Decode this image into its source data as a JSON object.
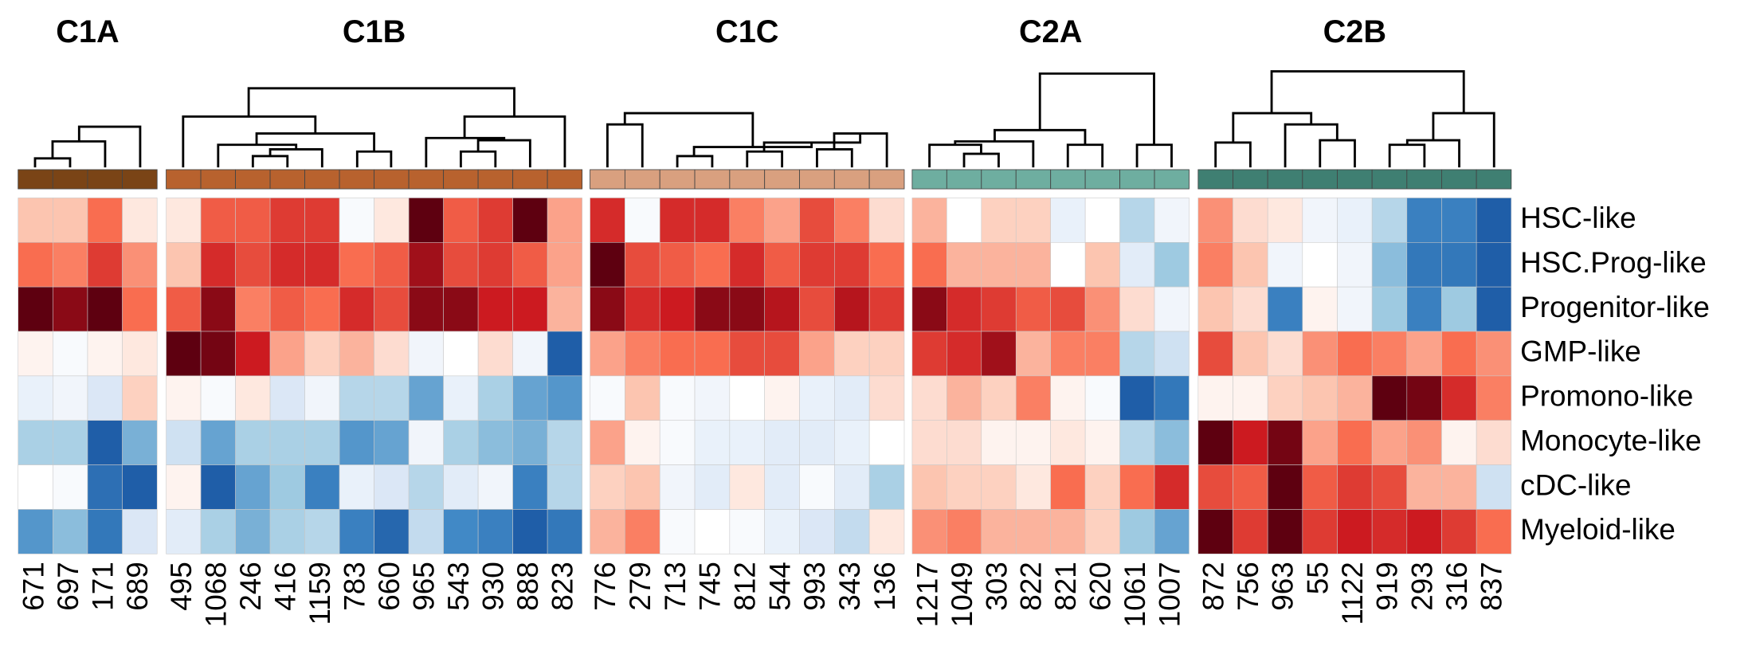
{
  "chart_data": {
    "type": "heatmap",
    "rows": [
      "HSC-like",
      "HSC.Prog-like",
      "Progenitor-like",
      "GMP-like",
      "Promono-like",
      "Monocyte-like",
      "cDC-like",
      "Myeloid-like"
    ],
    "color_scale": {
      "domain": [
        -2,
        -1.5,
        -1,
        -0.5,
        0,
        0.5,
        1,
        1.5,
        2
      ],
      "colors": [
        "#1f5ea8",
        "#4189c6",
        "#9ecae1",
        "#dbe7f6",
        "#ffffff",
        "#fcc5b0",
        "#f96d50",
        "#cc1a20",
        "#5e0010"
      ]
    },
    "groups": [
      {
        "name": "C1A",
        "color": "#7a4416",
        "columns": [
          "671",
          "697",
          "171",
          "689"
        ],
        "values": [
          [
            0.5,
            0.5,
            1.0,
            0.2
          ],
          [
            1.0,
            0.9,
            1.3,
            0.8
          ],
          [
            2.0,
            1.8,
            2.0,
            1.0
          ],
          [
            0.1,
            -0.1,
            0.1,
            0.2
          ],
          [
            -0.3,
            -0.2,
            -0.5,
            0.4
          ],
          [
            -0.9,
            -0.9,
            -2.0,
            -1.2
          ],
          [
            0,
            -0.1,
            -1.8,
            -2.0
          ],
          [
            -1.4,
            -1.1,
            -1.7,
            -0.5
          ]
        ]
      },
      {
        "name": "C1B",
        "color": "#b8622e",
        "columns": [
          "495",
          "1068",
          "246",
          "416",
          "1159",
          "783",
          "660",
          "965",
          "543",
          "930",
          "888",
          "823"
        ],
        "values": [
          [
            0.2,
            1.1,
            1.1,
            1.3,
            1.3,
            -0.1,
            0.2,
            2.0,
            1.1,
            1.3,
            2.0,
            0.7
          ],
          [
            0.5,
            1.4,
            1.2,
            1.4,
            1.4,
            1.0,
            1.1,
            1.7,
            1.2,
            1.3,
            1.1,
            0.7
          ],
          [
            1.1,
            1.8,
            0.9,
            1.1,
            1.0,
            1.4,
            1.2,
            1.8,
            1.8,
            1.5,
            1.5,
            0.6
          ],
          [
            2.0,
            1.9,
            1.5,
            0.7,
            0.4,
            0.6,
            0.3,
            -0.2,
            0,
            0.3,
            -0.2,
            -2.0
          ],
          [
            0.1,
            -0.1,
            0.2,
            -0.5,
            -0.2,
            -0.8,
            -0.8,
            -1.3,
            -0.3,
            -0.9,
            -1.3,
            -1.4
          ],
          [
            -0.6,
            -1.3,
            -0.9,
            -0.9,
            -0.9,
            -1.4,
            -1.3,
            -0.2,
            -0.9,
            -1.1,
            -1.2,
            -0.8
          ],
          [
            0.1,
            -2.0,
            -1.3,
            -1.0,
            -1.6,
            -0.3,
            -0.5,
            -0.8,
            -0.4,
            -0.2,
            -1.6,
            -0.8
          ],
          [
            -0.4,
            -0.9,
            -1.2,
            -0.9,
            -0.8,
            -1.6,
            -1.9,
            -0.7,
            -1.5,
            -1.6,
            -2.0,
            -1.7
          ]
        ]
      },
      {
        "name": "C1C",
        "color": "#d9a07f",
        "columns": [
          "776",
          "279",
          "713",
          "745",
          "812",
          "544",
          "993",
          "343",
          "136"
        ],
        "values": [
          [
            1.4,
            -0.1,
            1.4,
            1.4,
            0.9,
            0.7,
            1.2,
            0.9,
            0.3
          ],
          [
            2.0,
            1.2,
            1.1,
            1.0,
            1.4,
            1.1,
            1.3,
            1.3,
            1.0
          ],
          [
            1.8,
            1.4,
            1.5,
            1.8,
            1.8,
            1.6,
            1.2,
            1.6,
            1.3
          ],
          [
            0.7,
            0.9,
            1.0,
            1.0,
            1.2,
            1.2,
            0.7,
            0.4,
            0.4
          ],
          [
            -0.1,
            0.5,
            -0.1,
            -0.2,
            0,
            0.1,
            -0.3,
            -0.4,
            0.3
          ],
          [
            0.7,
            0.1,
            -0.1,
            -0.3,
            -0.3,
            -0.4,
            -0.4,
            -0.3,
            0
          ],
          [
            0.4,
            0.5,
            -0.2,
            -0.4,
            0.2,
            -0.4,
            -0.1,
            -0.4,
            -0.9
          ],
          [
            0.6,
            0.9,
            -0.1,
            0,
            -0.1,
            -0.3,
            -0.5,
            -0.7,
            0.2
          ]
        ]
      },
      {
        "name": "C2A",
        "color": "#6eaea0",
        "columns": [
          "1217",
          "1049",
          "303",
          "822",
          "821",
          "620",
          "1061",
          "1007"
        ],
        "values": [
          [
            0.6,
            0,
            0.4,
            0.4,
            -0.3,
            0,
            -0.8,
            -0.2
          ],
          [
            1.0,
            0.6,
            0.6,
            0.6,
            0,
            0.5,
            -0.4,
            -1.0
          ],
          [
            1.8,
            1.4,
            1.3,
            1.1,
            1.2,
            0.8,
            0.3,
            -0.2
          ],
          [
            1.3,
            1.4,
            1.7,
            0.6,
            0.9,
            0.9,
            -0.8,
            -0.6
          ],
          [
            0.3,
            0.6,
            0.4,
            0.9,
            0.1,
            -0.1,
            -2.0,
            -1.7
          ],
          [
            0.3,
            0.3,
            0.1,
            0.1,
            0.2,
            0.1,
            -0.8,
            -1.1
          ],
          [
            0.5,
            0.4,
            0.4,
            0.2,
            1.0,
            0.4,
            1.0,
            1.4
          ],
          [
            0.8,
            0.9,
            0.6,
            0.6,
            0.6,
            0.4,
            -1.0,
            -1.3
          ]
        ]
      },
      {
        "name": "C2B",
        "color": "#3f7f72",
        "columns": [
          "872",
          "756",
          "963",
          "55",
          "1122",
          "919",
          "293",
          "316",
          "837"
        ],
        "values": [
          [
            0.8,
            0.3,
            0.2,
            -0.2,
            -0.3,
            -0.8,
            -1.6,
            -1.6,
            -2.0
          ],
          [
            0.9,
            0.5,
            -0.2,
            0,
            -0.2,
            -1.1,
            -1.7,
            -1.7,
            -2.0
          ],
          [
            0.5,
            0.3,
            -1.6,
            0.1,
            -0.2,
            -1.0,
            -1.6,
            -1.0,
            -2.0
          ],
          [
            1.2,
            0.5,
            0.3,
            0.8,
            1.0,
            0.9,
            0.7,
            1.0,
            0.8
          ],
          [
            0.1,
            0.1,
            0.4,
            0.5,
            0.6,
            2.0,
            1.9,
            1.4,
            0.9
          ],
          [
            2.0,
            1.5,
            1.9,
            0.7,
            1.0,
            0.7,
            0.8,
            0.1,
            0.3
          ],
          [
            1.2,
            1.1,
            2.0,
            1.1,
            1.3,
            1.2,
            0.6,
            0.6,
            -0.6
          ],
          [
            2.0,
            1.3,
            2.0,
            1.3,
            1.5,
            1.4,
            1.5,
            1.3,
            1.0
          ]
        ]
      }
    ]
  }
}
